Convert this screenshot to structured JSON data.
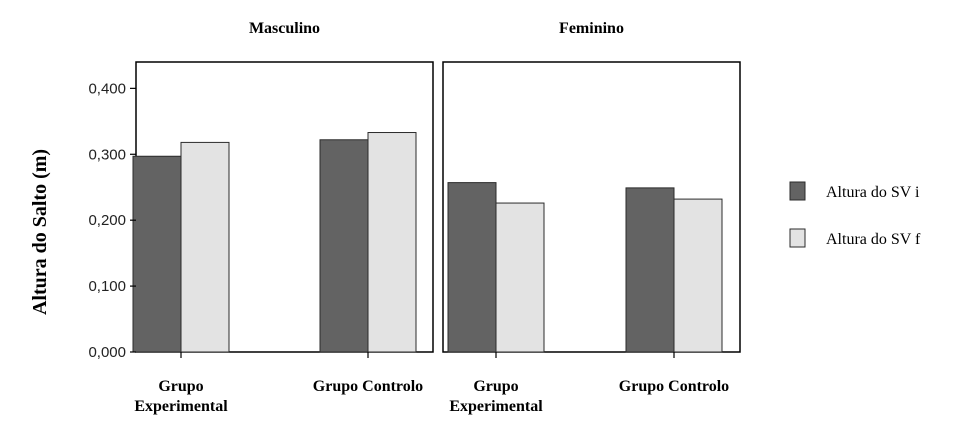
{
  "chart_data": {
    "type": "bar",
    "ylabel": "Altura do Salto (m)",
    "ylim": [
      0,
      0.44
    ],
    "yticks": [
      "0,000",
      "0,100",
      "0,200",
      "0,300",
      "0,400"
    ],
    "ytick_values": [
      0,
      0.1,
      0.2,
      0.3,
      0.4
    ],
    "legend_position": "right",
    "colors": {
      "Altura do SV i": "#636363",
      "Altura do SV f": "#e3e3e3"
    },
    "panels": [
      {
        "title": "Masculino",
        "categories": [
          "Grupo Experimental",
          "Grupo Controlo"
        ],
        "category_lines": [
          [
            "Grupo",
            "Experimental"
          ],
          [
            "Grupo Controlo"
          ]
        ],
        "series": [
          {
            "name": "Altura do SV i",
            "values": [
              0.297,
              0.322
            ]
          },
          {
            "name": "Altura do SV f",
            "values": [
              0.318,
              0.333
            ]
          }
        ]
      },
      {
        "title": "Feminino",
        "categories": [
          "Grupo Experimental",
          "Grupo Controlo"
        ],
        "category_lines": [
          [
            "Grupo",
            "Experimental"
          ],
          [
            "Grupo Controlo"
          ]
        ],
        "series": [
          {
            "name": "Altura do SV i",
            "values": [
              0.257,
              0.249
            ]
          },
          {
            "name": "Altura do SV f",
            "values": [
              0.226,
              0.232
            ]
          }
        ]
      }
    ],
    "legend": [
      "Altura do SV i",
      "Altura do SV f"
    ]
  }
}
